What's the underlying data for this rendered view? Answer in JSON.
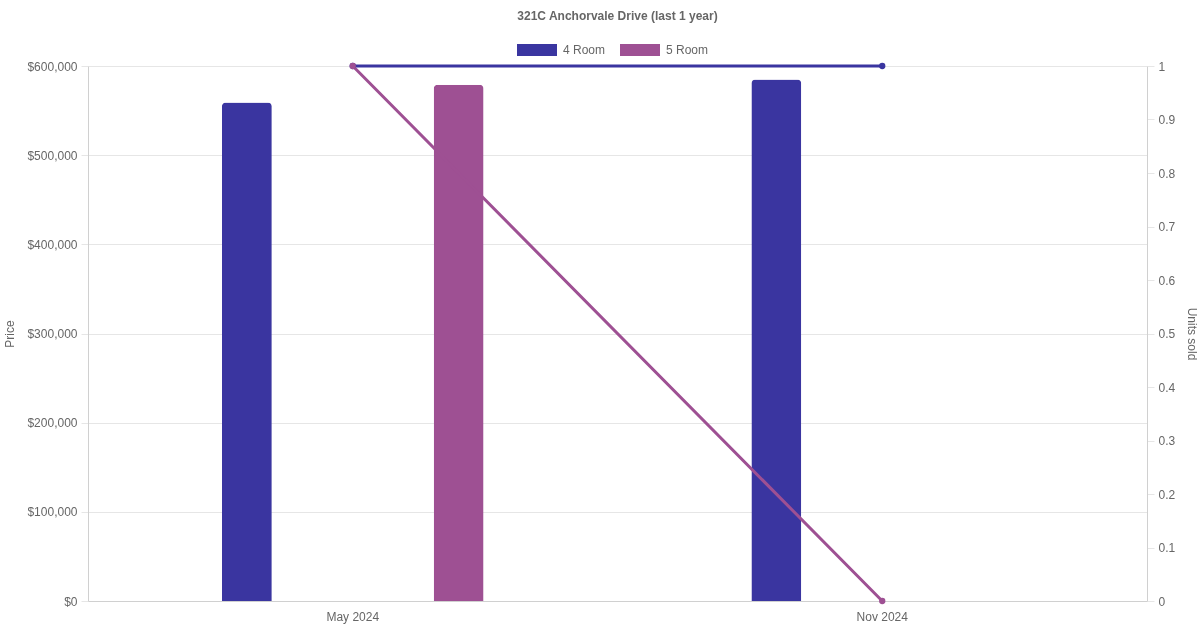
{
  "chart_data": {
    "type": "bar",
    "title": "321C Anchorvale Drive (last 1 year)",
    "categories": [
      "May 2024",
      "Nov 2024"
    ],
    "series": [
      {
        "name": "4 Room",
        "color": "#3a35a0",
        "values": [
          559000,
          585000
        ]
      },
      {
        "name": "5 Room",
        "color": "#9e5093",
        "values": [
          579000,
          null
        ]
      },
      {
        "type": "line",
        "axis": "y2",
        "color": "#3a35a0",
        "values": [
          1,
          1
        ]
      },
      {
        "type": "line",
        "axis": "y2",
        "color": "#9e5093",
        "values": [
          1,
          0
        ]
      }
    ],
    "ylabel": "Price",
    "y2label": "Units sold",
    "ylim": [
      0,
      600000
    ],
    "yticks": [
      {
        "value": 0,
        "label": "$0"
      },
      {
        "value": 100000,
        "label": "$100,000"
      },
      {
        "value": 200000,
        "label": "$200,000"
      },
      {
        "value": 300000,
        "label": "$300,000"
      },
      {
        "value": 400000,
        "label": "$400,000"
      },
      {
        "value": 500000,
        "label": "$500,000"
      },
      {
        "value": 600000,
        "label": "$600,000"
      }
    ],
    "y2lim": [
      0,
      1
    ],
    "y2ticks": [
      0,
      0.1,
      0.2,
      0.3,
      0.4,
      0.5,
      0.6,
      0.7,
      0.8,
      0.9,
      1
    ],
    "grid": "y",
    "legend": "top",
    "marker": "circle"
  }
}
